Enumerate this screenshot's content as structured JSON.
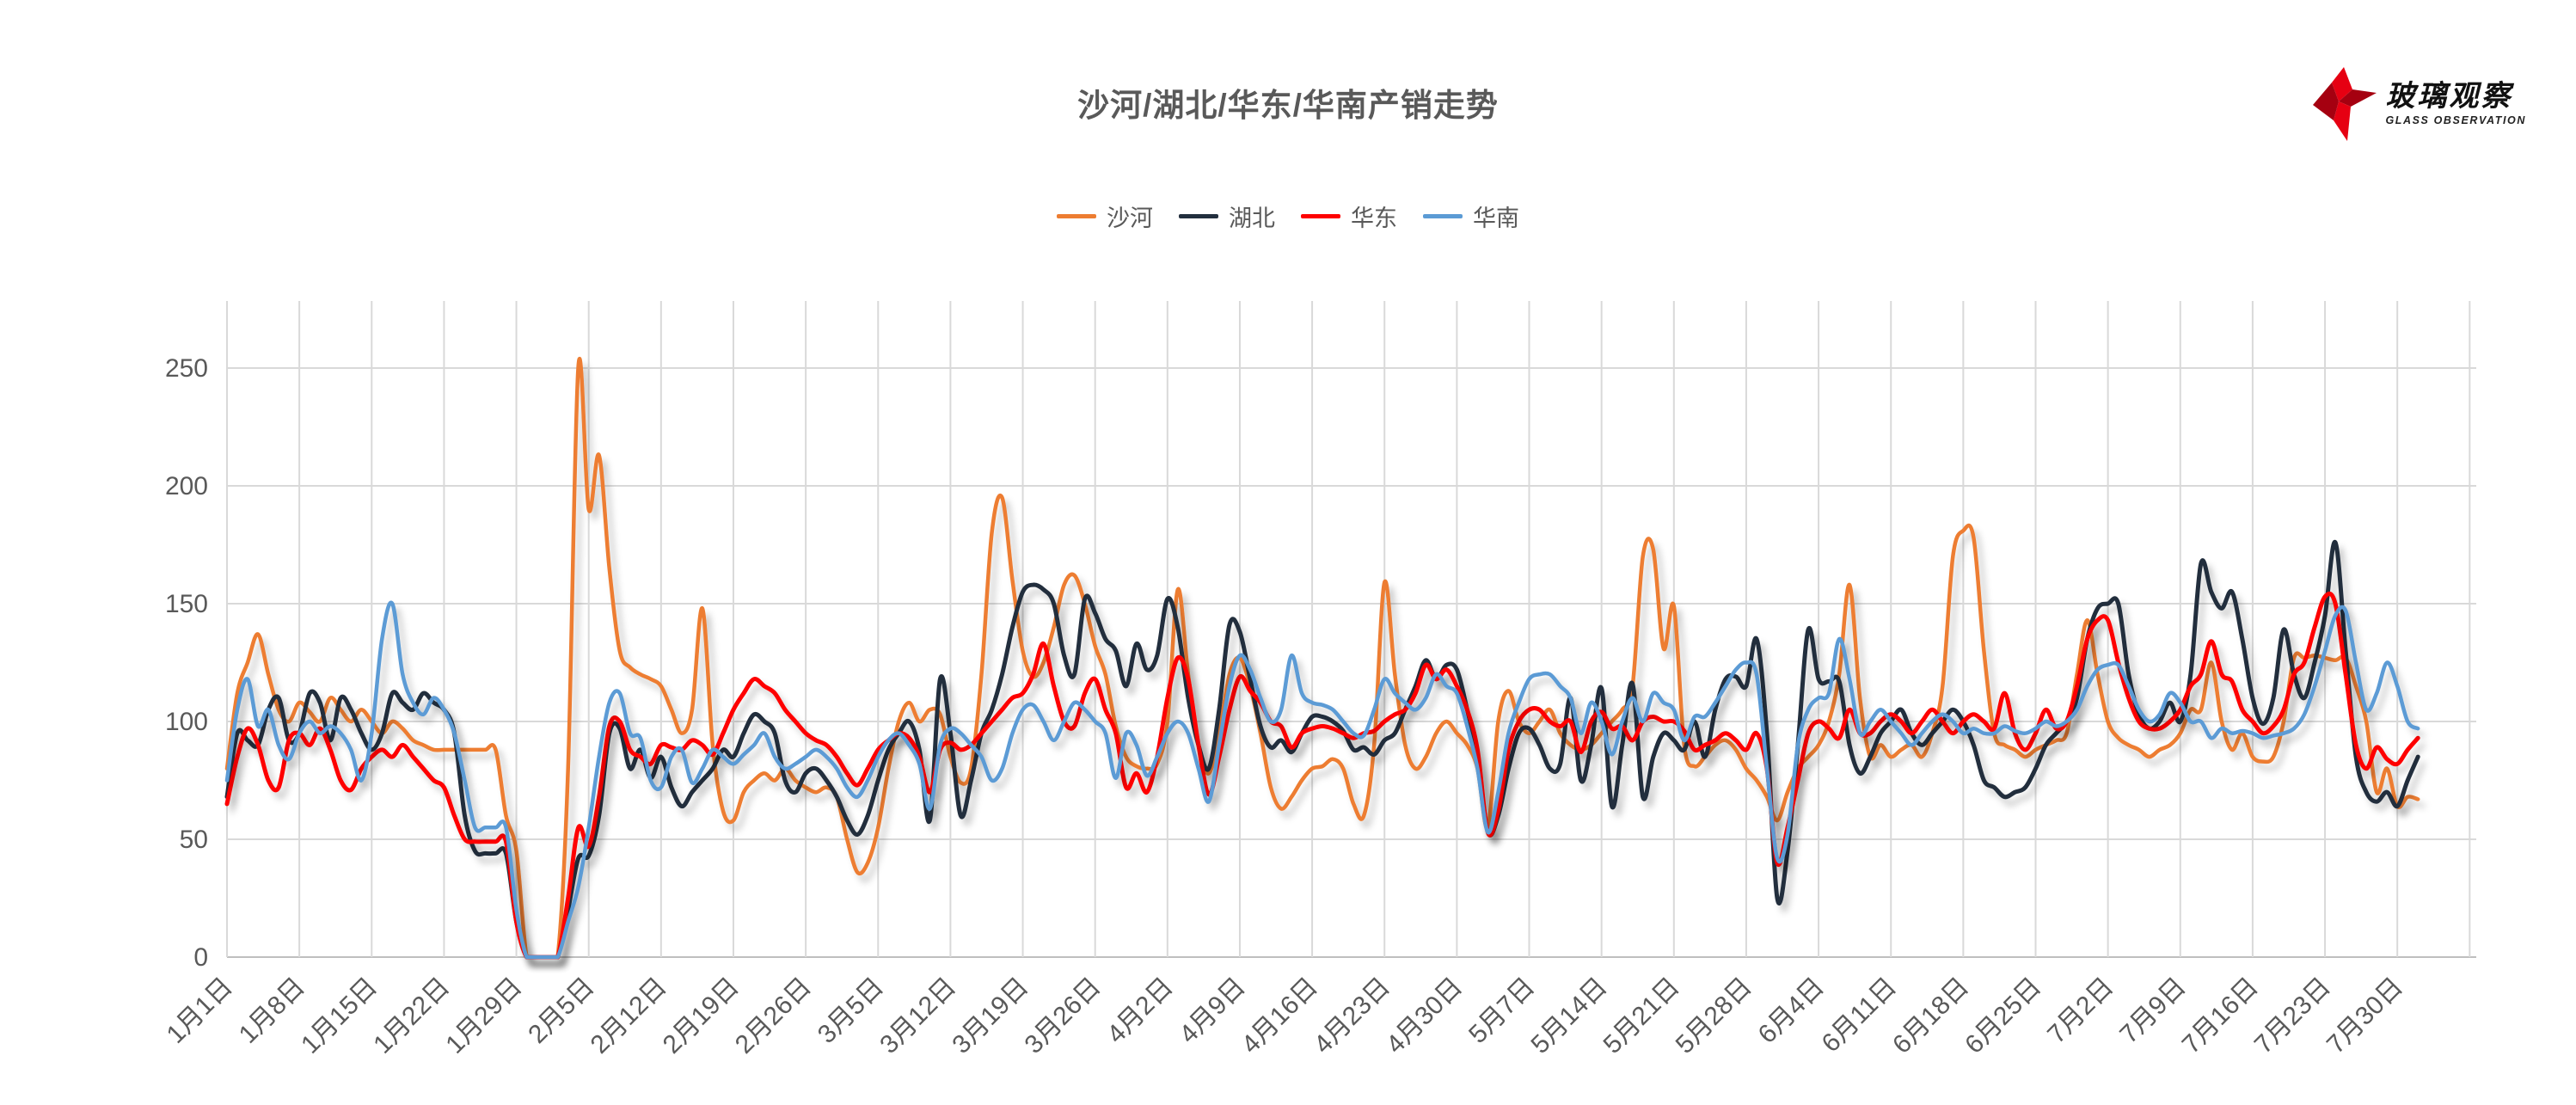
{
  "header": {
    "title": "沙河/湖北/华东/华南产销走势"
  },
  "logo": {
    "brand": "玻璃观察",
    "subtitle": "GLASS OBSERVATION",
    "star_color": "#E60012",
    "star_dark_color": "#A50010"
  },
  "chart_data": {
    "type": "line",
    "title": "沙河/湖北/华东/华南产销走势",
    "grid": true,
    "legend_position": "top",
    "x_axis": {
      "start_label": "1月1日",
      "tick_interval_days": 7,
      "tick_labels": [
        "1月1日",
        "1月8日",
        "1月15日",
        "1月22日",
        "1月29日",
        "2月5日",
        "2月12日",
        "2月19日",
        "2月26日",
        "3月5日",
        "3月12日",
        "3月19日",
        "3月26日",
        "4月2日",
        "4月9日",
        "4月16日",
        "4月23日",
        "4月30日",
        "5月7日",
        "5月14日",
        "5月21日",
        "5月28日",
        "6月4日",
        "6月11日",
        "6月18日",
        "6月25日",
        "7月2日",
        "7月9日",
        "7月16日",
        "7月23日",
        "7月30日"
      ]
    },
    "y_axis": {
      "ticks": [
        0,
        50,
        100,
        150,
        200,
        250
      ],
      "min": 0,
      "max": 280
    },
    "colors": {
      "grid": "#D9D9D9",
      "axis": "#BFBFBF",
      "tick_text": "#595959"
    },
    "series": [
      {
        "name": "沙河",
        "color": "#ED7D31",
        "values": [
          80,
          112,
          125,
          137,
          120,
          105,
          100,
          108,
          104,
          100,
          110,
          105,
          100,
          105,
          100,
          95,
          100,
          97,
          92,
          90,
          88,
          88,
          88,
          88,
          88,
          88,
          88,
          60,
          45,
          0,
          0,
          0,
          0,
          80,
          251,
          190,
          213,
          165,
          130,
          123,
          120,
          118,
          115,
          105,
          95,
          105,
          148,
          90,
          62,
          58,
          70,
          75,
          78,
          75,
          80,
          75,
          72,
          70,
          72,
          68,
          50,
          36,
          40,
          55,
          80,
          100,
          108,
          100,
          105,
          103,
          85,
          74,
          80,
          120,
          180,
          195,
          160,
          130,
          119,
          125,
          140,
          158,
          162,
          150,
          132,
          120,
          98,
          85,
          81,
          80,
          82,
          100,
          156,
          120,
          90,
          78,
          95,
          120,
          127,
          115,
          95,
          72,
          63,
          68,
          75,
          80,
          81,
          84,
          80,
          65,
          60,
          90,
          159,
          120,
          90,
          80,
          85,
          95,
          100,
          95,
          90,
          80,
          55,
          100,
          113,
          100,
          95,
          100,
          105,
          95,
          90,
          88,
          90,
          95,
          100,
          105,
          115,
          170,
          173,
          131,
          149,
          90,
          81,
          85,
          90,
          92,
          88,
          80,
          75,
          68,
          58,
          70,
          80,
          85,
          90,
          100,
          120,
          158,
          110,
          85,
          90,
          85,
          88,
          90,
          85,
          95,
          115,
          170,
          181,
          178,
          130,
          95,
          90,
          88,
          85,
          88,
          90,
          92,
          95,
          120,
          143,
          120,
          100,
          93,
          90,
          88,
          85,
          88,
          90,
          95,
          105,
          105,
          125,
          100,
          88,
          95,
          85,
          83,
          85,
          100,
          127,
          127,
          128,
          127,
          126,
          127,
          115,
          100,
          70,
          80,
          64,
          68,
          67
        ]
      },
      {
        "name": "湖北",
        "color": "#222F3E",
        "values": [
          68,
          95,
          92,
          90,
          105,
          110,
          92,
          95,
          112,
          108,
          92,
          110,
          105,
          95,
          88,
          95,
          112,
          108,
          105,
          112,
          108,
          105,
          95,
          60,
          45,
          44,
          44,
          44,
          15,
          0,
          0,
          0,
          0,
          20,
          42,
          43,
          60,
          95,
          97,
          80,
          88,
          76,
          85,
          72,
          64,
          70,
          75,
          80,
          88,
          85,
          95,
          103,
          100,
          95,
          75,
          70,
          78,
          80,
          75,
          68,
          58,
          52,
          60,
          75,
          88,
          95,
          100,
          88,
          58,
          118,
          95,
          60,
          75,
          95,
          105,
          120,
          140,
          155,
          158,
          156,
          150,
          128,
          120,
          152,
          146,
          135,
          130,
          115,
          133,
          122,
          128,
          152,
          140,
          110,
          90,
          80,
          105,
          141,
          138,
          118,
          98,
          89,
          92,
          87,
          95,
          102,
          102,
          100,
          96,
          88,
          89,
          86,
          92,
          95,
          105,
          115,
          126,
          118,
          124,
          122,
          105,
          85,
          53,
          60,
          80,
          95,
          97,
          90,
          80,
          82,
          110,
          75,
          90,
          114,
          64,
          90,
          116,
          68,
          85,
          95,
          92,
          88,
          100,
          85,
          105,
          118,
          119,
          115,
          135,
          95,
          25,
          45,
          90,
          139,
          118,
          117,
          117,
          90,
          78,
          85,
          95,
          100,
          105,
          95,
          90,
          95,
          100,
          105,
          100,
          90,
          75,
          72,
          68,
          70,
          72,
          80,
          90,
          95,
          100,
          110,
          135,
          148,
          150,
          150,
          120,
          103,
          97,
          100,
          108,
          100,
          120,
          167,
          155,
          148,
          155,
          135,
          110,
          99,
          110,
          139,
          120,
          110,
          125,
          145,
          176,
          130,
          85,
          70,
          66,
          70,
          64,
          75,
          85
        ]
      },
      {
        "name": "华东",
        "color": "#FE0000",
        "values": [
          65,
          85,
          97,
          90,
          75,
          72,
          92,
          95,
          90,
          97,
          88,
          75,
          71,
          80,
          85,
          88,
          85,
          90,
          85,
          80,
          75,
          72,
          60,
          50,
          49,
          49,
          49,
          49,
          15,
          0,
          0,
          0,
          0,
          25,
          55,
          47,
          68,
          98,
          100,
          88,
          85,
          82,
          90,
          89,
          88,
          92,
          90,
          86,
          95,
          105,
          112,
          118,
          115,
          112,
          105,
          100,
          95,
          92,
          90,
          85,
          78,
          73,
          80,
          88,
          92,
          95,
          93,
          85,
          70,
          88,
          91,
          88,
          90,
          95,
          100,
          105,
          110,
          112,
          120,
          133,
          115,
          100,
          98,
          112,
          118,
          105,
          95,
          72,
          78,
          70,
          85,
          110,
          127,
          118,
          90,
          69,
          85,
          105,
          119,
          113,
          108,
          100,
          98,
          89,
          95,
          97,
          98,
          97,
          95,
          93,
          95,
          96,
          100,
          103,
          105,
          112,
          124,
          118,
          122,
          115,
          105,
          88,
          53,
          62,
          88,
          100,
          105,
          105,
          100,
          98,
          100,
          87,
          100,
          104,
          97,
          98,
          92,
          100,
          102,
          100,
          100,
          96,
          88,
          90,
          92,
          95,
          92,
          88,
          95,
          80,
          40,
          55,
          75,
          95,
          100,
          97,
          93,
          105,
          95,
          95,
          100,
          103,
          100,
          95,
          100,
          105,
          100,
          95,
          100,
          103,
          100,
          97,
          112,
          95,
          88,
          95,
          105,
          97,
          100,
          115,
          135,
          143,
          143,
          125,
          110,
          100,
          97,
          97,
          100,
          105,
          115,
          120,
          134,
          120,
          117,
          105,
          100,
          95,
          98,
          105,
          120,
          125,
          140,
          153,
          150,
          120,
          90,
          80,
          89,
          84,
          82,
          88,
          93
        ]
      },
      {
        "name": "华南",
        "color": "#5B9BD5",
        "values": [
          75,
          105,
          118,
          98,
          105,
          90,
          84,
          95,
          100,
          95,
          98,
          95,
          88,
          75,
          95,
          135,
          150,
          120,
          108,
          103,
          110,
          105,
          95,
          75,
          55,
          55,
          55,
          55,
          20,
          0,
          0,
          0,
          0,
          15,
          30,
          55,
          85,
          108,
          112,
          95,
          93,
          75,
          72,
          85,
          88,
          74,
          80,
          88,
          85,
          82,
          86,
          90,
          95,
          85,
          80,
          82,
          85,
          88,
          85,
          80,
          72,
          68,
          75,
          85,
          92,
          95,
          90,
          82,
          63,
          90,
          97,
          95,
          90,
          85,
          75,
          80,
          95,
          105,
          107,
          100,
          92,
          100,
          108,
          105,
          100,
          95,
          76,
          95,
          90,
          77,
          85,
          95,
          100,
          95,
          80,
          66,
          90,
          115,
          128,
          122,
          110,
          100,
          105,
          128,
          112,
          108,
          107,
          105,
          100,
          95,
          94,
          105,
          118,
          112,
          108,
          105,
          110,
          120,
          115,
          112,
          98,
          80,
          53,
          70,
          95,
          108,
          118,
          120,
          120,
          115,
          110,
          95,
          108,
          100,
          86,
          100,
          110,
          100,
          112,
          108,
          105,
          92,
          102,
          102,
          108,
          115,
          122,
          125,
          120,
          80,
          42,
          52,
          90,
          105,
          110,
          112,
          135,
          118,
          95,
          100,
          105,
          100,
          95,
          90,
          95,
          100,
          103,
          100,
          95,
          97,
          95,
          95,
          98,
          96,
          95,
          97,
          100,
          98,
          100,
          105,
          115,
          122,
          124,
          124,
          115,
          105,
          100,
          103,
          112,
          108,
          100,
          100,
          93,
          97,
          95,
          96,
          95,
          93,
          94,
          95,
          97,
          103,
          115,
          130,
          145,
          147,
          125,
          105,
          112,
          125,
          115,
          100,
          97
        ]
      }
    ]
  }
}
